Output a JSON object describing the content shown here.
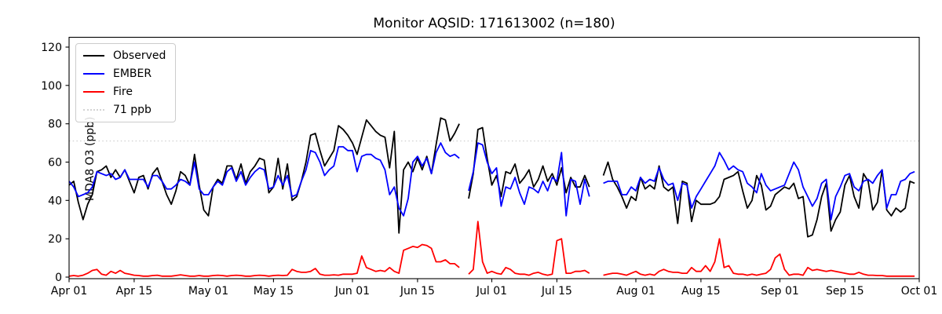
{
  "chart_data": {
    "type": "line",
    "title": "Monitor AQSID: 171613002 (n=180)",
    "xlabel": "",
    "ylabel": "MDA8 O3 (ppb)",
    "ylim": [
      0,
      125
    ],
    "y_ticks": [
      0,
      20,
      40,
      60,
      80,
      100,
      120
    ],
    "n_days": 183,
    "x_tick_days": [
      0,
      14,
      30,
      44,
      61,
      75,
      91,
      105,
      122,
      136,
      153,
      167,
      183
    ],
    "x_tick_labels": [
      "Apr 01",
      "Apr 15",
      "May 01",
      "May 15",
      "Jun 01",
      "Jun 15",
      "Jul 01",
      "Jul 15",
      "Aug 01",
      "Aug 15",
      "Sep 01",
      "Sep 15",
      "Oct 01"
    ],
    "grid": false,
    "legend_position": "upper left",
    "threshold": {
      "label": "71 ppb",
      "value": 71,
      "color": "#d3d3d3",
      "style": "dotted"
    },
    "series": [
      {
        "name": "Observed",
        "color": "#000000",
        "values": [
          48,
          50,
          39,
          30,
          38,
          43,
          55,
          56,
          58,
          52,
          56,
          52,
          56,
          50,
          44,
          52,
          53,
          46,
          54,
          57,
          50,
          43,
          38,
          45,
          55,
          53,
          48,
          64,
          48,
          35,
          32,
          47,
          51,
          49,
          58,
          58,
          51,
          59,
          49,
          55,
          58,
          62,
          61,
          44,
          47,
          62,
          46,
          59,
          40,
          42,
          50,
          60,
          74,
          75,
          66,
          58,
          62,
          66,
          79,
          77,
          74,
          70,
          64,
          73,
          82,
          79,
          76,
          74,
          73,
          57,
          76,
          23,
          56,
          60,
          55,
          62,
          56,
          63,
          54,
          69,
          83,
          82,
          71,
          75,
          80,
          null,
          41,
          54,
          77,
          78,
          62,
          48,
          53,
          42,
          55,
          54,
          59,
          49,
          52,
          56,
          47,
          51,
          58,
          50,
          54,
          48,
          57,
          44,
          52,
          47,
          47,
          53,
          47,
          null,
          null,
          53,
          60,
          51,
          47,
          42,
          36,
          42,
          40,
          52,
          46,
          48,
          46,
          58,
          47,
          45,
          47,
          28,
          50,
          49,
          29,
          40,
          38,
          38,
          38,
          39,
          42,
          51,
          52,
          53,
          55,
          45,
          36,
          40,
          53,
          48,
          35,
          37,
          43,
          45,
          47,
          46,
          49,
          41,
          42,
          21,
          22,
          30,
          42,
          49,
          24,
          30,
          34,
          48,
          53,
          42,
          36,
          54,
          50,
          35,
          39,
          56,
          35,
          32,
          36,
          34,
          36,
          50,
          49
        ]
      },
      {
        "name": "EMBER",
        "color": "#0000ff",
        "values": [
          50,
          47,
          42,
          43,
          44,
          47,
          55,
          54,
          53,
          54,
          51,
          52,
          56,
          51,
          51,
          51,
          51,
          47,
          53,
          53,
          50,
          46,
          46,
          48,
          51,
          50,
          48,
          60,
          46,
          43,
          43,
          47,
          50,
          48,
          55,
          57,
          50,
          55,
          48,
          52,
          55,
          57,
          56,
          46,
          47,
          53,
          48,
          53,
          42,
          43,
          50,
          56,
          66,
          65,
          60,
          53,
          56,
          58,
          68,
          68,
          66,
          66,
          55,
          63,
          64,
          64,
          62,
          61,
          56,
          43,
          47,
          36,
          32,
          41,
          60,
          63,
          58,
          62,
          54,
          65,
          70,
          65,
          63,
          64,
          62,
          null,
          45,
          55,
          70,
          69,
          60,
          54,
          57,
          37,
          47,
          46,
          52,
          44,
          38,
          47,
          46,
          44,
          50,
          45,
          52,
          50,
          65,
          32,
          51,
          50,
          38,
          51,
          42,
          null,
          null,
          49,
          50,
          50,
          50,
          43,
          43,
          47,
          45,
          52,
          49,
          51,
          50,
          57,
          51,
          48,
          49,
          40,
          49,
          48,
          36,
          42,
          46,
          50,
          54,
          58,
          65,
          61,
          56,
          58,
          56,
          55,
          49,
          47,
          44,
          54,
          48,
          45,
          46,
          47,
          48,
          54,
          60,
          56,
          47,
          42,
          37,
          41,
          49,
          51,
          30,
          42,
          47,
          53,
          54,
          47,
          45,
          50,
          51,
          49,
          53,
          56,
          36,
          43,
          43,
          50,
          51,
          54,
          55
        ]
      },
      {
        "name": "Fire",
        "color": "#ff0000",
        "values": [
          0.5,
          0.8,
          0.5,
          1,
          2,
          3.5,
          4,
          1.5,
          1,
          3,
          2,
          3.5,
          2,
          1.5,
          1,
          0.8,
          0.5,
          0.5,
          0.8,
          1,
          0.5,
          0.5,
          0.5,
          0.8,
          1.2,
          0.8,
          0.5,
          0.5,
          0.8,
          0.5,
          0.5,
          0.8,
          1,
          0.8,
          0.5,
          0.8,
          1,
          0.8,
          0.5,
          0.5,
          0.8,
          1,
          0.8,
          0.5,
          0.8,
          1,
          0.8,
          1,
          4,
          3,
          2.5,
          2.5,
          3,
          4.5,
          1.5,
          1,
          1,
          1.2,
          1,
          1.5,
          1.5,
          1.5,
          2,
          11,
          5,
          4,
          3,
          3.5,
          3,
          5,
          3,
          2,
          14,
          15,
          16,
          15.5,
          17,
          16.5,
          15,
          8,
          8,
          9,
          7,
          7,
          5,
          null,
          1.5,
          4,
          29,
          8,
          2,
          3,
          2,
          1.5,
          5,
          4,
          2,
          1.5,
          1.5,
          1,
          2,
          2.5,
          1.5,
          1,
          1.5,
          19,
          20,
          2,
          2,
          3,
          3,
          3.5,
          2,
          null,
          null,
          1,
          1.5,
          2,
          2,
          1.5,
          1,
          2,
          3,
          1.5,
          1,
          1.5,
          1,
          3,
          4,
          3,
          2.5,
          2.5,
          2,
          2,
          5,
          3,
          3,
          6,
          3,
          8,
          20,
          5,
          6,
          2,
          1.5,
          1.5,
          1,
          1.5,
          1,
          1.5,
          2,
          4,
          10,
          12,
          4,
          1,
          1.5,
          1.5,
          1,
          5,
          3.5,
          4,
          3.5,
          3,
          3.5,
          3,
          2.5,
          2,
          1.5,
          1.5,
          2.5,
          1.5,
          1,
          1,
          0.8,
          0.8,
          0.5,
          0.5,
          0.5,
          0.5,
          0.5,
          0.5,
          0.5
        ]
      }
    ]
  }
}
